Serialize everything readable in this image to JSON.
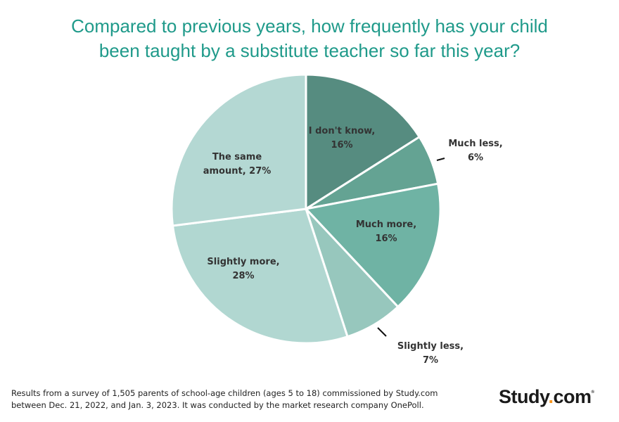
{
  "chart_data": {
    "type": "pie",
    "title_lines": [
      "Compared to previous years, how frequently has your child",
      "been taught by a substitute teacher so far this year?"
    ],
    "slices": [
      {
        "label": "I don't know,",
        "value": 16,
        "value_label": "16%",
        "color": "#568c80"
      },
      {
        "label": "Much less,",
        "value": 6,
        "value_label": "6%",
        "color": "#64a393"
      },
      {
        "label": "Much more,",
        "value": 16,
        "value_label": "16%",
        "color": "#6fb3a4"
      },
      {
        "label": "Slightly less,",
        "value": 7,
        "value_label": "7%",
        "color": "#97c7bd"
      },
      {
        "label": "Slightly more,",
        "value": 28,
        "value_label": "28%",
        "color": "#b1d7d1"
      },
      {
        "label": "The same amount,",
        "value": 27,
        "value_label": "27%",
        "color": "#b4d8d3"
      }
    ]
  },
  "footer": {
    "line1": "Results from a survey of 1,505 parents of school-age children (ages 5 to 18) commissioned by Study.com",
    "line2": "between Dec. 21, 2022, and Jan. 3, 2023. It was conducted by the market research company OnePoll."
  },
  "logo": {
    "part1": "Study",
    "dot": ".",
    "part2": "com",
    "mark": "®"
  }
}
